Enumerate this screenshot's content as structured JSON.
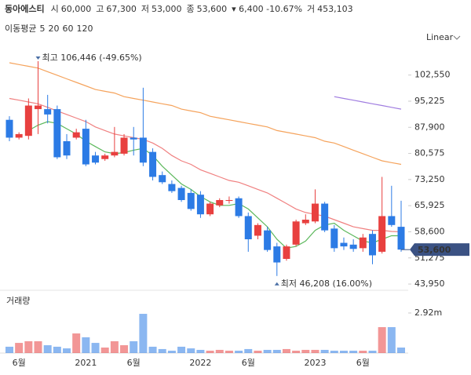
{
  "chart_data": {
    "type": "candlestick",
    "title": "동아에스티",
    "quote": [
      {
        "label": "시",
        "value": "60,000"
      },
      {
        "label": "고",
        "value": "67,300"
      },
      {
        "label": "저",
        "value": "53,000"
      },
      {
        "label": "종",
        "value": "53,600"
      }
    ],
    "change": "▾ 6,400 -10.67%",
    "volume_quote": {
      "label": "거",
      "value": "453,103"
    },
    "scale": "Linear",
    "ma_label": "이동평균",
    "up_color": "#e8403f",
    "down_color": "#2c7be5",
    "categories": [
      null,
      "6월",
      null,
      null,
      null,
      null,
      null,
      null,
      "2021",
      null,
      null,
      null,
      null,
      "6월",
      null,
      null,
      null,
      null,
      null,
      null,
      "2022",
      null,
      null,
      null,
      null,
      "6월",
      null,
      null,
      null,
      null,
      null,
      null,
      "2023",
      null,
      null,
      null,
      null,
      "6월",
      null,
      null,
      null,
      null
    ],
    "open": [
      90000,
      85000,
      85500,
      93000,
      93000,
      93000,
      84000,
      85000,
      87500,
      80000,
      79000,
      80000,
      80500,
      85000,
      85000,
      81000,
      74500,
      72000,
      70900,
      69500,
      69000,
      63500,
      66000,
      67500,
      68000,
      63000,
      57500,
      59000,
      54500,
      51000,
      55000,
      61000,
      61500,
      66500,
      59500,
      55500,
      55000,
      54000,
      58000,
      53000,
      63000,
      60000
    ],
    "high": [
      91000,
      86500,
      96000,
      106446,
      97000,
      94000,
      86000,
      87500,
      90000,
      81000,
      80500,
      88000,
      86000,
      88000,
      99000,
      82000,
      75500,
      73000,
      71500,
      70500,
      70000,
      67000,
      68000,
      68500,
      68500,
      64000,
      61000,
      60000,
      55500,
      55000,
      62000,
      63500,
      70500,
      67000,
      60500,
      57000,
      56500,
      58000,
      59000,
      74000,
      71500,
      67300
    ],
    "low": [
      84000,
      84500,
      84500,
      86000,
      89000,
      79000,
      79000,
      84500,
      77000,
      77500,
      78500,
      79500,
      80000,
      80000,
      77000,
      73000,
      72000,
      69500,
      67000,
      64500,
      62500,
      63000,
      65500,
      66500,
      62500,
      53000,
      56500,
      53000,
      46208,
      50500,
      54500,
      60500,
      61000,
      58500,
      53000,
      53500,
      53000,
      53000,
      49500,
      52500,
      60000,
      53000
    ],
    "close": [
      85000,
      86000,
      94000,
      94000,
      91500,
      79500,
      80000,
      86500,
      77500,
      78000,
      80000,
      81000,
      85000,
      84500,
      78000,
      74000,
      72500,
      70000,
      67500,
      65000,
      63500,
      66500,
      67500,
      67500,
      63000,
      56500,
      60500,
      53500,
      50000,
      54500,
      61500,
      62000,
      66500,
      59000,
      54000,
      54500,
      53800,
      57000,
      52000,
      63000,
      60500,
      53600
    ],
    "ylim": [
      43300,
      110400
    ],
    "yticks": [
      {
        "value": 43950,
        "label": "43,950"
      },
      {
        "value": 51275,
        "label": "51,275"
      },
      {
        "value": 58600,
        "label": "58,600"
      },
      {
        "value": 65925,
        "label": "65,925"
      },
      {
        "value": 73250,
        "label": "73,250"
      },
      {
        "value": 80575,
        "label": "80,575"
      },
      {
        "value": 87900,
        "label": "87,900"
      },
      {
        "value": 95225,
        "label": "95,225"
      },
      {
        "value": 102550,
        "label": "102,550"
      }
    ],
    "last_price": {
      "value": 53600,
      "label": "53,600"
    },
    "high_note": "최고 106,446 (-49.65%)",
    "low_note": "최저 46,208 (16.00%)",
    "series": [
      {
        "name": "5",
        "color": "#5cb85c",
        "values": [
          null,
          null,
          87000,
          88500,
          89500,
          89000,
          87500,
          86000,
          84000,
          82500,
          81000,
          80500,
          80800,
          81500,
          82000,
          80000,
          77000,
          74500,
          72000,
          70500,
          68500,
          67000,
          66000,
          66000,
          66500,
          65000,
          62500,
          60000,
          56500,
          54000,
          54500,
          56000,
          59000,
          60500,
          61000,
          59000,
          57500,
          56000,
          55500,
          56500,
          57500,
          57500
        ]
      },
      {
        "name": "20",
        "color": "#f08080",
        "values": [
          96000,
          95500,
          95000,
          94500,
          93500,
          92500,
          91500,
          90500,
          89500,
          88000,
          87000,
          86000,
          85500,
          85000,
          84500,
          83500,
          82000,
          80000,
          78500,
          77500,
          76000,
          75000,
          74000,
          73000,
          72500,
          71500,
          70500,
          69500,
          68000,
          66500,
          65000,
          64000,
          63500,
          63000,
          62000,
          61000,
          60000,
          59500,
          59000,
          59000,
          58700,
          58600
        ]
      },
      {
        "name": "60",
        "color": "#f5a35c",
        "values": [
          106000,
          105500,
          105000,
          104500,
          103500,
          102500,
          101500,
          100500,
          99500,
          98500,
          98000,
          97500,
          96500,
          96000,
          95500,
          95000,
          94500,
          94000,
          93000,
          92500,
          92000,
          91000,
          90500,
          90000,
          89500,
          89000,
          88500,
          88000,
          87000,
          86500,
          86000,
          85500,
          85000,
          84000,
          83500,
          82500,
          81500,
          80500,
          79500,
          78500,
          78000,
          77500
        ]
      },
      {
        "name": "120",
        "color": "#a07de0",
        "values": [
          null,
          null,
          null,
          null,
          null,
          null,
          null,
          null,
          null,
          null,
          null,
          null,
          null,
          null,
          null,
          null,
          null,
          null,
          null,
          null,
          null,
          null,
          null,
          null,
          null,
          null,
          null,
          null,
          null,
          null,
          null,
          null,
          null,
          null,
          96500,
          96000,
          95500,
          95000,
          94500,
          94000,
          93500,
          93000
        ]
      }
    ],
    "volume": {
      "label": "거래량",
      "values": [
        460000,
        740000,
        860000,
        860000,
        570000,
        460000,
        340000,
        1430000,
        1150000,
        740000,
        400000,
        860000,
        570000,
        860000,
        2860000,
        460000,
        290000,
        170000,
        460000,
        340000,
        230000,
        170000,
        230000,
        170000,
        170000,
        290000,
        170000,
        230000,
        230000,
        290000,
        170000,
        230000,
        230000,
        230000,
        170000,
        170000,
        170000,
        170000,
        170000,
        1890000,
        1890000,
        400000
      ],
      "ylim": [
        0,
        3720000
      ],
      "yticks": [
        {
          "value": 2920000,
          "label": "2.92m"
        }
      ]
    }
  }
}
